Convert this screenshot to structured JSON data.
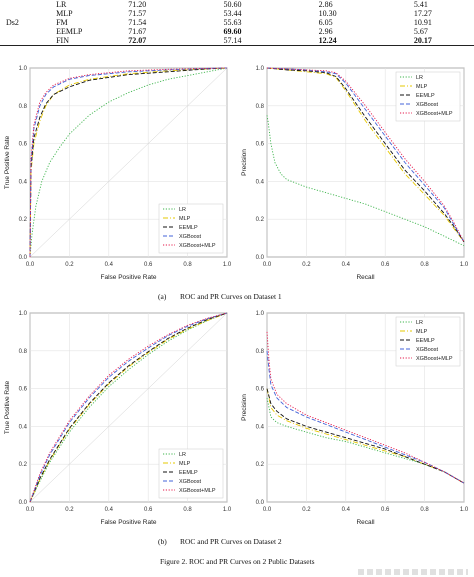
{
  "table": {
    "group_label": "Ds2",
    "rows": [
      {
        "model": "LR",
        "v1": "71.20",
        "v2": "50.60",
        "v3": "2.86",
        "v4": "5.41",
        "bold": []
      },
      {
        "model": "MLP",
        "v1": "71.57",
        "v2": "53.44",
        "v3": "10.30",
        "v4": "17.27",
        "bold": []
      },
      {
        "model": "FM",
        "v1": "71.54",
        "v2": "55.63",
        "v3": "6.05",
        "v4": "10.91",
        "bold": []
      },
      {
        "model": "EEMLP",
        "v1": "71.67",
        "v2": "69.60",
        "v3": "2.96",
        "v4": "5.67",
        "bold": [
          "v2"
        ]
      },
      {
        "model": "FIN",
        "v1": "72.07",
        "v2": "57.14",
        "v3": "12.24",
        "v4": "20.17",
        "bold": [
          "v1",
          "v3",
          "v4"
        ]
      }
    ]
  },
  "captions": {
    "a_letter": "(a)",
    "a_text": "ROC and PR Curves on Dataset 1",
    "b_letter": "(b)",
    "b_text": "ROC and PR Curves on Dataset 2",
    "figure": "Figure 2. ROC and PR Curves on 2 Public Datasets"
  },
  "chart_data": [
    {
      "id": "roc1",
      "type": "line",
      "xlabel": "False Positive Rate",
      "ylabel": "True Positive Rate",
      "xlim": [
        0,
        1
      ],
      "ylim": [
        0,
        1
      ],
      "xticks": [
        "0.0",
        "0.2",
        "0.4",
        "0.6",
        "0.8",
        "1.0"
      ],
      "yticks": [
        "0.0",
        "0.2",
        "0.4",
        "0.6",
        "0.8",
        "1.0"
      ],
      "grid": true,
      "legend_position": "bottom-right",
      "series": [
        {
          "name": "LR",
          "color": "#3cb44b",
          "style": "dotted",
          "x": [
            0,
            0.01,
            0.03,
            0.06,
            0.1,
            0.15,
            0.2,
            0.3,
            0.4,
            0.5,
            0.6,
            0.7,
            0.8,
            0.9,
            1.0
          ],
          "y": [
            0,
            0.12,
            0.27,
            0.4,
            0.5,
            0.58,
            0.65,
            0.75,
            0.82,
            0.87,
            0.91,
            0.94,
            0.96,
            0.98,
            1.0
          ]
        },
        {
          "name": "MLP",
          "color": "#e6c800",
          "style": "dashdot",
          "x": [
            0,
            0.005,
            0.02,
            0.05,
            0.08,
            0.12,
            0.2,
            0.3,
            0.5,
            0.7,
            0.9,
            1.0
          ],
          "y": [
            0,
            0.45,
            0.6,
            0.72,
            0.8,
            0.86,
            0.91,
            0.94,
            0.97,
            0.985,
            0.995,
            1.0
          ]
        },
        {
          "name": "EEMLP",
          "color": "#111111",
          "style": "dashed",
          "x": [
            0,
            0.005,
            0.02,
            0.05,
            0.08,
            0.12,
            0.2,
            0.3,
            0.5,
            0.7,
            0.9,
            1.0
          ],
          "y": [
            0,
            0.47,
            0.63,
            0.74,
            0.81,
            0.86,
            0.9,
            0.935,
            0.965,
            0.98,
            0.995,
            1.0
          ]
        },
        {
          "name": "XGBoost",
          "color": "#4363d8",
          "style": "dashed",
          "x": [
            0,
            0.005,
            0.02,
            0.05,
            0.08,
            0.12,
            0.2,
            0.3,
            0.5,
            0.7,
            0.9,
            1.0
          ],
          "y": [
            0,
            0.5,
            0.68,
            0.8,
            0.86,
            0.9,
            0.94,
            0.96,
            0.98,
            0.99,
            0.998,
            1.0
          ]
        },
        {
          "name": "XGBoost+MLP",
          "color": "#e6194b",
          "style": "dotted",
          "x": [
            0,
            0.005,
            0.02,
            0.05,
            0.08,
            0.12,
            0.2,
            0.3,
            0.5,
            0.7,
            0.9,
            1.0
          ],
          "y": [
            0,
            0.52,
            0.7,
            0.82,
            0.87,
            0.91,
            0.945,
            0.965,
            0.985,
            0.993,
            0.998,
            1.0
          ]
        }
      ]
    },
    {
      "id": "pr1",
      "type": "line",
      "xlabel": "Recall",
      "ylabel": "Precision",
      "xlim": [
        0,
        1
      ],
      "ylim": [
        0,
        1
      ],
      "xticks": [
        "0.0",
        "0.2",
        "0.4",
        "0.6",
        "0.8",
        "1.0"
      ],
      "yticks": [
        "0.0",
        "0.2",
        "0.4",
        "0.6",
        "0.8",
        "1.0"
      ],
      "grid": true,
      "legend_position": "top-right",
      "series": [
        {
          "name": "LR",
          "color": "#3cb44b",
          "style": "dotted",
          "x": [
            0,
            0.005,
            0.02,
            0.04,
            0.07,
            0.1,
            0.2,
            0.3,
            0.4,
            0.5,
            0.6,
            0.7,
            0.8,
            0.9,
            1.0
          ],
          "y": [
            0.75,
            0.72,
            0.6,
            0.5,
            0.44,
            0.41,
            0.37,
            0.34,
            0.31,
            0.28,
            0.24,
            0.2,
            0.16,
            0.11,
            0.06
          ]
        },
        {
          "name": "MLP",
          "color": "#e6c800",
          "style": "dashdot",
          "x": [
            0,
            0.1,
            0.2,
            0.3,
            0.35,
            0.4,
            0.5,
            0.6,
            0.7,
            0.8,
            0.9,
            0.95,
            1.0
          ],
          "y": [
            1.0,
            0.99,
            0.98,
            0.97,
            0.95,
            0.88,
            0.72,
            0.58,
            0.44,
            0.33,
            0.22,
            0.15,
            0.08
          ]
        },
        {
          "name": "EEMLP",
          "color": "#111111",
          "style": "dashed",
          "x": [
            0,
            0.1,
            0.2,
            0.3,
            0.35,
            0.4,
            0.5,
            0.6,
            0.7,
            0.8,
            0.9,
            0.95,
            1.0
          ],
          "y": [
            1.0,
            0.99,
            0.985,
            0.975,
            0.955,
            0.89,
            0.74,
            0.6,
            0.46,
            0.35,
            0.23,
            0.16,
            0.08
          ]
        },
        {
          "name": "XGBoost",
          "color": "#4363d8",
          "style": "dashed",
          "x": [
            0,
            0.1,
            0.2,
            0.3,
            0.35,
            0.4,
            0.5,
            0.6,
            0.7,
            0.8,
            0.9,
            0.95,
            1.0
          ],
          "y": [
            1.0,
            0.995,
            0.99,
            0.98,
            0.97,
            0.92,
            0.78,
            0.64,
            0.5,
            0.38,
            0.26,
            0.17,
            0.08
          ]
        },
        {
          "name": "XGBoost+MLP",
          "color": "#e6194b",
          "style": "dotted",
          "x": [
            0,
            0.1,
            0.2,
            0.3,
            0.35,
            0.4,
            0.5,
            0.6,
            0.7,
            0.8,
            0.9,
            0.95,
            1.0
          ],
          "y": [
            1.0,
            0.995,
            0.99,
            0.985,
            0.975,
            0.93,
            0.8,
            0.66,
            0.52,
            0.4,
            0.27,
            0.18,
            0.08
          ]
        }
      ]
    },
    {
      "id": "roc2",
      "type": "line",
      "xlabel": "False Positive Rate",
      "ylabel": "True Positive Rate",
      "xlim": [
        0,
        1
      ],
      "ylim": [
        0,
        1
      ],
      "xticks": [
        "0.0",
        "0.2",
        "0.4",
        "0.6",
        "0.8",
        "1.0"
      ],
      "yticks": [
        "0.0",
        "0.2",
        "0.4",
        "0.6",
        "0.8",
        "1.0"
      ],
      "grid": true,
      "legend_position": "bottom-right",
      "series": [
        {
          "name": "LR",
          "color": "#3cb44b",
          "style": "dotted",
          "x": [
            0,
            0.05,
            0.1,
            0.2,
            0.3,
            0.4,
            0.5,
            0.6,
            0.7,
            0.8,
            0.9,
            1.0
          ],
          "y": [
            0,
            0.11,
            0.21,
            0.37,
            0.5,
            0.61,
            0.7,
            0.78,
            0.85,
            0.91,
            0.96,
            1.0
          ]
        },
        {
          "name": "MLP",
          "color": "#e6c800",
          "style": "dashdot",
          "x": [
            0,
            0.05,
            0.1,
            0.2,
            0.3,
            0.4,
            0.5,
            0.6,
            0.7,
            0.8,
            0.9,
            1.0
          ],
          "y": [
            0,
            0.12,
            0.22,
            0.385,
            0.515,
            0.625,
            0.715,
            0.79,
            0.86,
            0.915,
            0.96,
            1.0
          ]
        },
        {
          "name": "EEMLP",
          "color": "#111111",
          "style": "dashed",
          "x": [
            0,
            0.05,
            0.1,
            0.2,
            0.3,
            0.4,
            0.5,
            0.6,
            0.7,
            0.8,
            0.9,
            1.0
          ],
          "y": [
            0,
            0.125,
            0.225,
            0.39,
            0.52,
            0.63,
            0.72,
            0.795,
            0.865,
            0.92,
            0.965,
            1.0
          ]
        },
        {
          "name": "XGBoost",
          "color": "#4363d8",
          "style": "dashed",
          "x": [
            0,
            0.05,
            0.1,
            0.2,
            0.3,
            0.4,
            0.5,
            0.6,
            0.7,
            0.8,
            0.9,
            1.0
          ],
          "y": [
            0,
            0.14,
            0.25,
            0.42,
            0.55,
            0.66,
            0.745,
            0.815,
            0.88,
            0.93,
            0.97,
            1.0
          ]
        },
        {
          "name": "XGBoost+MLP",
          "color": "#e6194b",
          "style": "dotted",
          "x": [
            0,
            0.05,
            0.1,
            0.2,
            0.3,
            0.4,
            0.5,
            0.6,
            0.7,
            0.8,
            0.9,
            1.0
          ],
          "y": [
            0,
            0.15,
            0.26,
            0.43,
            0.56,
            0.67,
            0.755,
            0.825,
            0.885,
            0.935,
            0.972,
            1.0
          ]
        }
      ]
    },
    {
      "id": "pr2",
      "type": "line",
      "xlabel": "Recall",
      "ylabel": "Precision",
      "xlim": [
        0,
        1
      ],
      "ylim": [
        0,
        1
      ],
      "xticks": [
        "0.0",
        "0.2",
        "0.4",
        "0.6",
        "0.8",
        "1.0"
      ],
      "yticks": [
        "0.0",
        "0.2",
        "0.4",
        "0.6",
        "0.8",
        "1.0"
      ],
      "grid": true,
      "legend_position": "top-right",
      "series": [
        {
          "name": "LR",
          "color": "#3cb44b",
          "style": "dotted",
          "x": [
            0,
            0.01,
            0.02,
            0.05,
            0.1,
            0.2,
            0.3,
            0.4,
            0.5,
            0.6,
            0.7,
            0.8,
            0.9,
            1.0
          ],
          "y": [
            0.55,
            0.5,
            0.45,
            0.42,
            0.4,
            0.37,
            0.34,
            0.32,
            0.29,
            0.26,
            0.23,
            0.2,
            0.16,
            0.1
          ]
        },
        {
          "name": "MLP",
          "color": "#e6c800",
          "style": "dashdot",
          "x": [
            0,
            0.01,
            0.02,
            0.05,
            0.1,
            0.2,
            0.3,
            0.4,
            0.5,
            0.6,
            0.7,
            0.8,
            0.9,
            1.0
          ],
          "y": [
            0.6,
            0.55,
            0.5,
            0.46,
            0.43,
            0.39,
            0.36,
            0.33,
            0.3,
            0.27,
            0.24,
            0.2,
            0.16,
            0.1
          ]
        },
        {
          "name": "EEMLP",
          "color": "#111111",
          "style": "dashed",
          "x": [
            0,
            0.01,
            0.02,
            0.05,
            0.1,
            0.2,
            0.3,
            0.4,
            0.5,
            0.6,
            0.7,
            0.8,
            0.9,
            1.0
          ],
          "y": [
            0.6,
            0.56,
            0.52,
            0.48,
            0.44,
            0.4,
            0.37,
            0.34,
            0.31,
            0.28,
            0.24,
            0.2,
            0.16,
            0.1
          ]
        },
        {
          "name": "XGBoost",
          "color": "#4363d8",
          "style": "dashed",
          "x": [
            0,
            0.01,
            0.02,
            0.05,
            0.1,
            0.2,
            0.3,
            0.4,
            0.5,
            0.6,
            0.7,
            0.8,
            0.9,
            1.0
          ],
          "y": [
            0.8,
            0.7,
            0.62,
            0.55,
            0.5,
            0.45,
            0.41,
            0.37,
            0.33,
            0.29,
            0.25,
            0.21,
            0.16,
            0.1
          ]
        },
        {
          "name": "XGBoost+MLP",
          "color": "#e6194b",
          "style": "dotted",
          "x": [
            0,
            0.01,
            0.02,
            0.05,
            0.1,
            0.2,
            0.3,
            0.4,
            0.5,
            0.6,
            0.7,
            0.8,
            0.9,
            1.0
          ],
          "y": [
            0.9,
            0.75,
            0.65,
            0.57,
            0.52,
            0.46,
            0.42,
            0.38,
            0.34,
            0.3,
            0.26,
            0.21,
            0.16,
            0.1
          ]
        }
      ]
    }
  ]
}
